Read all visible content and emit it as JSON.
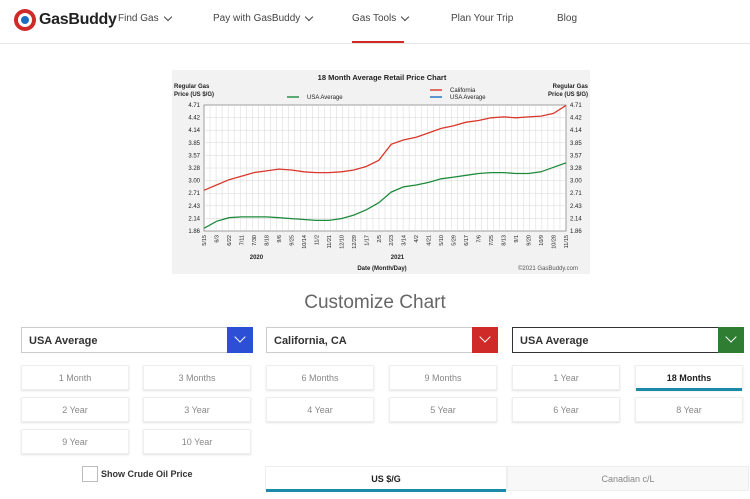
{
  "nav": {
    "logo_text": "GasBuddy",
    "items": [
      {
        "label": "Find Gas"
      },
      {
        "label": "Pay with GasBuddy"
      },
      {
        "label": "Gas Tools"
      },
      {
        "label": "Plan Your Trip"
      },
      {
        "label": "Blog"
      }
    ]
  },
  "chart_data": {
    "type": "line",
    "title": "18 Month Average Retail Price Chart",
    "ylabel_left": "Regular Gas Price (US $/G)",
    "ylabel_right": "Regular Gas Price (US $/G)",
    "xlabel": "Date (Month/Day)",
    "copyright": "©2021 GasBuddy.com",
    "ylim": [
      1.86,
      4.71
    ],
    "yticks": [
      "4.71",
      "4.42",
      "4.14",
      "3.85",
      "3.57",
      "3.28",
      "3.00",
      "2.71",
      "2.43",
      "2.14",
      "1.86"
    ],
    "xticks": [
      "5/15",
      "6/3",
      "6/22",
      "7/11",
      "7/30",
      "8/18",
      "9/6",
      "9/25",
      "10/14",
      "11/2",
      "11/21",
      "12/10",
      "12/29",
      "1/17",
      "2/5",
      "2/23",
      "3/14",
      "4/2",
      "4/21",
      "5/10",
      "5/29",
      "6/17",
      "7/6",
      "7/25",
      "8/13",
      "9/1",
      "9/20",
      "10/9",
      "10/28",
      "11/15"
    ],
    "year_labels": [
      "2020",
      "2021"
    ],
    "grid": true,
    "legend": [
      {
        "name": "USA Average",
        "color": "#1e8a3c"
      },
      {
        "name": "California",
        "color": "#d9382b"
      },
      {
        "name": "USA Average",
        "color": "#1a6ec0"
      }
    ],
    "series": [
      {
        "name": "California",
        "color": "#d9382b",
        "values": [
          2.78,
          2.9,
          3.02,
          3.1,
          3.18,
          3.22,
          3.26,
          3.24,
          3.2,
          3.18,
          3.18,
          3.2,
          3.24,
          3.32,
          3.46,
          3.82,
          3.92,
          3.98,
          4.08,
          4.18,
          4.24,
          4.32,
          4.36,
          4.42,
          4.44,
          4.42,
          4.44,
          4.46,
          4.52,
          4.7
        ]
      },
      {
        "name": "USA Average",
        "color": "#1e8a3c",
        "values": [
          1.92,
          2.08,
          2.16,
          2.18,
          2.18,
          2.18,
          2.16,
          2.14,
          2.12,
          2.1,
          2.1,
          2.14,
          2.22,
          2.34,
          2.5,
          2.74,
          2.86,
          2.9,
          2.96,
          3.04,
          3.08,
          3.12,
          3.16,
          3.18,
          3.18,
          3.16,
          3.16,
          3.2,
          3.3,
          3.4
        ]
      }
    ]
  },
  "customize": {
    "title": "Customize Chart",
    "dropdowns": [
      {
        "label": "USA Average",
        "color": "#2c4fd6"
      },
      {
        "label": "California, CA",
        "color": "#cf2a27"
      },
      {
        "label": "USA Average",
        "color": "#2e7d32"
      }
    ],
    "periods": [
      "1 Month",
      "3 Months",
      "6 Months",
      "9 Months",
      "1 Year",
      "18 Months",
      "2 Year",
      "3 Year",
      "4 Year",
      "5 Year",
      "6 Year",
      "8 Year",
      "9 Year",
      "10 Year"
    ],
    "selected_period": "18 Months",
    "crude_label": "Show Crude Oil Price",
    "units": [
      {
        "label": "US $/G",
        "selected": true
      },
      {
        "label": "Canadian c/L",
        "selected": false
      }
    ]
  }
}
